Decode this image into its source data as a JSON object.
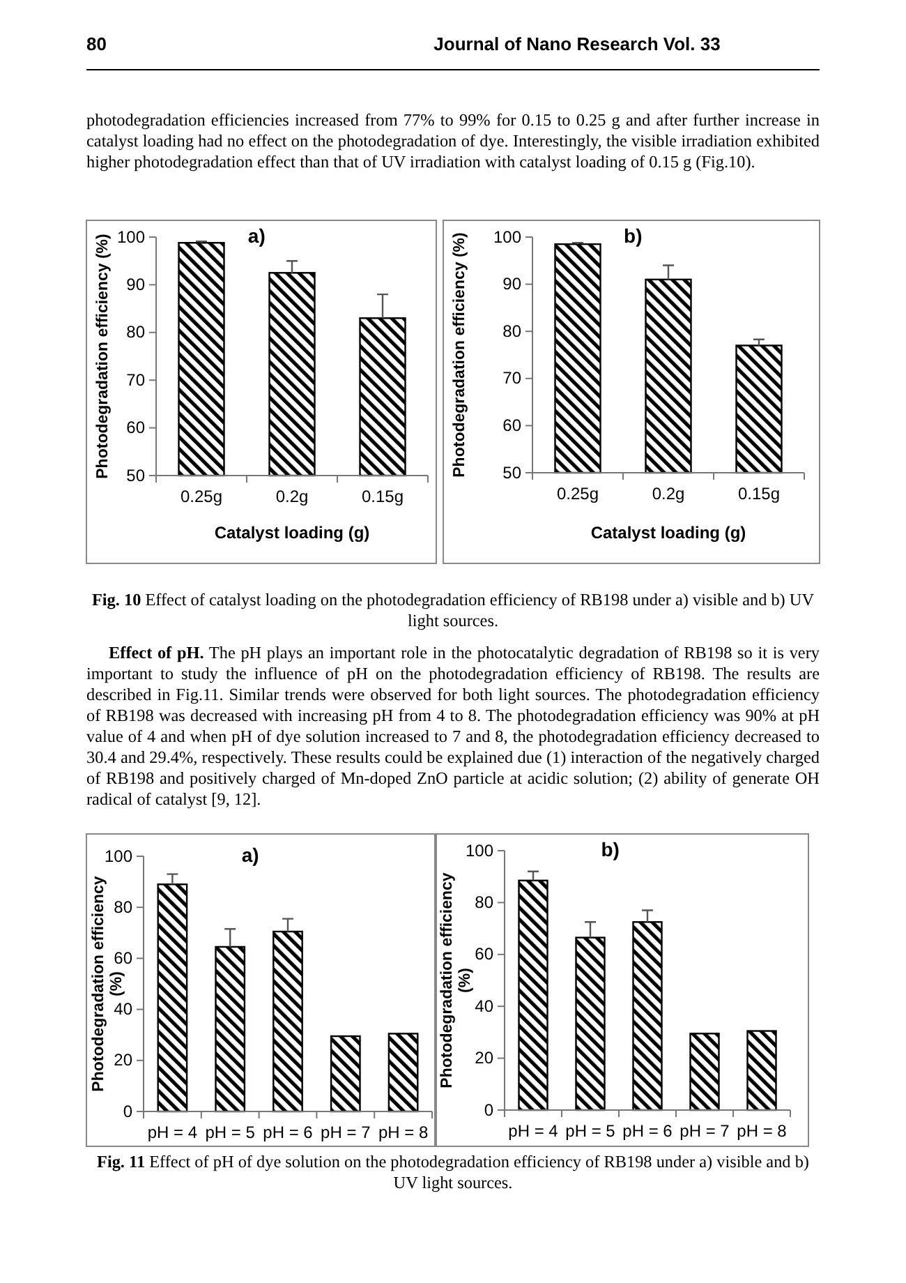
{
  "chart_data": [
    {
      "type": "bar",
      "title": "a)",
      "xlabel": "Catalyst loading (g)",
      "ylabel": "Photodegradation efficiency (%)",
      "categories": [
        "0.25g",
        "0.2g",
        "0.15g"
      ],
      "values": [
        98.8,
        92.5,
        83
      ],
      "errors": [
        0.3,
        2.5,
        5
      ],
      "color": "#000000",
      "ylim": [
        50,
        100
      ],
      "yticks": [
        50,
        60,
        70,
        80,
        90,
        100
      ],
      "grid": false,
      "annotations": [
        "80",
        "Journal of Nano Research Vol. 33",
        "photodegradation efficiencies increased from 77% to 99% for 0.15 to 0.25 g and after further increase in catalyst loading had no effect on the photodegradation of dye. Interestingly, the visible irradiation exhibited higher photodegradation effect than that of UV irradiation with catalyst loading of 0.15 g (Fig.10)."
      ]
    },
    {
      "type": "bar",
      "title": "b)",
      "xlabel": "Catalyst loading (g)",
      "ylabel": "Photodegradation efficiency (%)",
      "categories": [
        "0.25g",
        "0.2g",
        "0.15g"
      ],
      "values": [
        98.5,
        91,
        77
      ],
      "errors": [
        0.3,
        3,
        1.3
      ],
      "color": "#000000",
      "ylim": [
        50,
        100
      ],
      "yticks": [
        50,
        60,
        70,
        80,
        90,
        100
      ],
      "grid": false,
      "annotations": [
        "Fig. 10 Effect of catalyst loading on the photodegradation efficiency of RB198 under a) visible and b) UV light sources.",
        "Effect of pH. The pH plays an important role in the photocatalytic degradation of RB198 so it is very important to study the influence of pH on the photodegradation efficiency of RB198. The results are described in Fig.11. Similar trends were observed for both light sources. The photodegradation efficiency of RB198 was decreased with increasing pH from 4 to 8. The photodegradation efficiency was 90% at pH value of 4 and when pH of dye solution increased to 7 and 8, the photodegradation efficiency decreased to 30.4 and 29.4%, respectively. These results could be explained due (1) interaction of the negatively charged of RB198 and positively charged of Mn-doped ZnO particle at acidic solution; (2) ability of generate OH radical of catalyst [9, 12]."
      ]
    },
    {
      "type": "bar",
      "title": "a)",
      "ylabel": "Photodegradation efficiency (%)",
      "categories": [
        "pH = 4",
        "pH = 5",
        "pH = 6",
        "pH = 7",
        "pH = 8"
      ],
      "values": [
        89,
        64.5,
        70.5,
        29.5,
        30.5
      ],
      "errors": [
        4,
        7,
        5,
        null,
        null
      ],
      "color": "#000000",
      "ylim": [
        0,
        100
      ],
      "yticks": [
        0,
        20,
        40,
        60,
        80,
        100
      ],
      "grid": false
    },
    {
      "type": "bar",
      "title": "b)",
      "ylabel": "Photodegradation efficiency (%)",
      "categories": [
        "pH = 4",
        "pH = 5",
        "pH = 6",
        "pH = 7",
        "pH = 8"
      ],
      "values": [
        88.5,
        66.5,
        72.5,
        29.5,
        30.5
      ],
      "errors": [
        3.5,
        6,
        4.5,
        null,
        null
      ],
      "color": "#000000",
      "ylim": [
        0,
        100
      ],
      "yticks": [
        0,
        20,
        40,
        60,
        80,
        100
      ],
      "grid": false,
      "annotations": [
        "Fig. 11 Effect of pH of dye solution on the photodegradation efficiency of RB198 under a) visible and b) UV light sources."
      ]
    }
  ]
}
